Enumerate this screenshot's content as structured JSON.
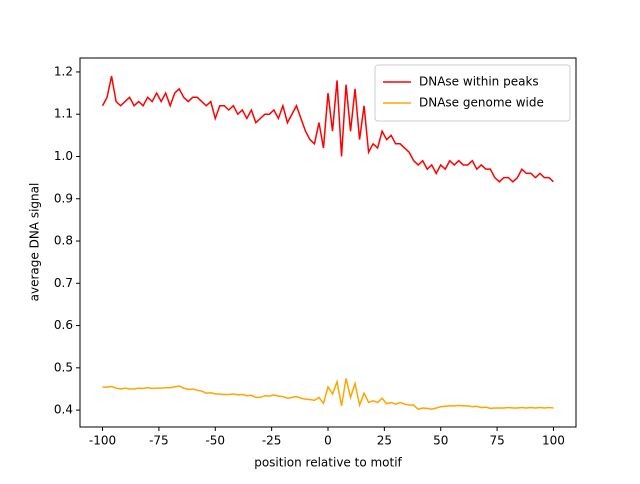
{
  "chart_data": {
    "type": "line",
    "xlabel": "position relative to motif",
    "ylabel": "average DNA signal",
    "x": [
      -100,
      -98,
      -96,
      -94,
      -92,
      -90,
      -88,
      -86,
      -84,
      -82,
      -80,
      -78,
      -76,
      -74,
      -72,
      -70,
      -68,
      -66,
      -64,
      -62,
      -60,
      -58,
      -56,
      -54,
      -52,
      -50,
      -48,
      -46,
      -44,
      -42,
      -40,
      -38,
      -36,
      -34,
      -32,
      -30,
      -28,
      -26,
      -24,
      -22,
      -20,
      -18,
      -16,
      -14,
      -12,
      -10,
      -8,
      -6,
      -4,
      -2,
      0,
      2,
      4,
      6,
      8,
      10,
      12,
      14,
      16,
      18,
      20,
      22,
      24,
      26,
      28,
      30,
      32,
      34,
      36,
      38,
      40,
      42,
      44,
      46,
      48,
      50,
      52,
      54,
      56,
      58,
      60,
      62,
      64,
      66,
      68,
      70,
      72,
      74,
      76,
      78,
      80,
      82,
      84,
      86,
      88,
      90,
      92,
      94,
      96,
      98,
      100
    ],
    "series": [
      {
        "name": "DNAse within peaks",
        "color": "#ff0000",
        "values": [
          1.12,
          1.14,
          1.19,
          1.13,
          1.12,
          1.13,
          1.14,
          1.12,
          1.13,
          1.12,
          1.14,
          1.13,
          1.15,
          1.13,
          1.15,
          1.12,
          1.15,
          1.16,
          1.14,
          1.13,
          1.14,
          1.14,
          1.13,
          1.12,
          1.13,
          1.09,
          1.12,
          1.12,
          1.11,
          1.12,
          1.1,
          1.11,
          1.09,
          1.11,
          1.08,
          1.09,
          1.1,
          1.1,
          1.11,
          1.09,
          1.12,
          1.08,
          1.1,
          1.12,
          1.09,
          1.06,
          1.04,
          1.03,
          1.08,
          1.02,
          1.15,
          1.06,
          1.18,
          1.0,
          1.17,
          1.06,
          1.16,
          1.04,
          1.12,
          1.01,
          1.03,
          1.02,
          1.06,
          1.04,
          1.05,
          1.03,
          1.03,
          1.02,
          1.01,
          0.99,
          0.98,
          0.99,
          0.97,
          0.98,
          0.96,
          0.98,
          0.97,
          0.99,
          0.98,
          0.99,
          0.98,
          0.98,
          0.99,
          0.97,
          0.98,
          0.97,
          0.97,
          0.95,
          0.94,
          0.95,
          0.95,
          0.94,
          0.95,
          0.97,
          0.96,
          0.96,
          0.95,
          0.96,
          0.95,
          0.95,
          0.94
        ]
      },
      {
        "name": "DNAse genome wide",
        "color": "#ffa500",
        "values": [
          0.455,
          0.454,
          0.456,
          0.452,
          0.45,
          0.452,
          0.45,
          0.45,
          0.452,
          0.451,
          0.453,
          0.451,
          0.452,
          0.452,
          0.453,
          0.453,
          0.455,
          0.457,
          0.452,
          0.449,
          0.45,
          0.447,
          0.445,
          0.44,
          0.441,
          0.438,
          0.438,
          0.437,
          0.437,
          0.438,
          0.436,
          0.437,
          0.434,
          0.435,
          0.43,
          0.43,
          0.434,
          0.433,
          0.436,
          0.433,
          0.432,
          0.428,
          0.43,
          0.432,
          0.428,
          0.426,
          0.425,
          0.423,
          0.43,
          0.416,
          0.455,
          0.438,
          0.467,
          0.41,
          0.475,
          0.43,
          0.463,
          0.412,
          0.44,
          0.418,
          0.422,
          0.418,
          0.428,
          0.415,
          0.418,
          0.414,
          0.418,
          0.414,
          0.412,
          0.412,
          0.402,
          0.405,
          0.404,
          0.402,
          0.405,
          0.408,
          0.409,
          0.41,
          0.41,
          0.411,
          0.41,
          0.41,
          0.408,
          0.409,
          0.406,
          0.407,
          0.404,
          0.405,
          0.405,
          0.405,
          0.406,
          0.405,
          0.405,
          0.406,
          0.405,
          0.406,
          0.405,
          0.406,
          0.405,
          0.406,
          0.405
        ]
      }
    ],
    "xlim": [
      -110,
      110
    ],
    "xticks": [
      -100,
      -75,
      -50,
      -25,
      0,
      25,
      50,
      75,
      100
    ],
    "ylim": [
      0.36,
      1.233
    ],
    "yticks": [
      0.4,
      0.5,
      0.6,
      0.7,
      0.8,
      0.9,
      {
        "value": 1,
        "label": "1.0"
      },
      1.1,
      1.2
    ],
    "legend": "upper right",
    "grid": false
  }
}
